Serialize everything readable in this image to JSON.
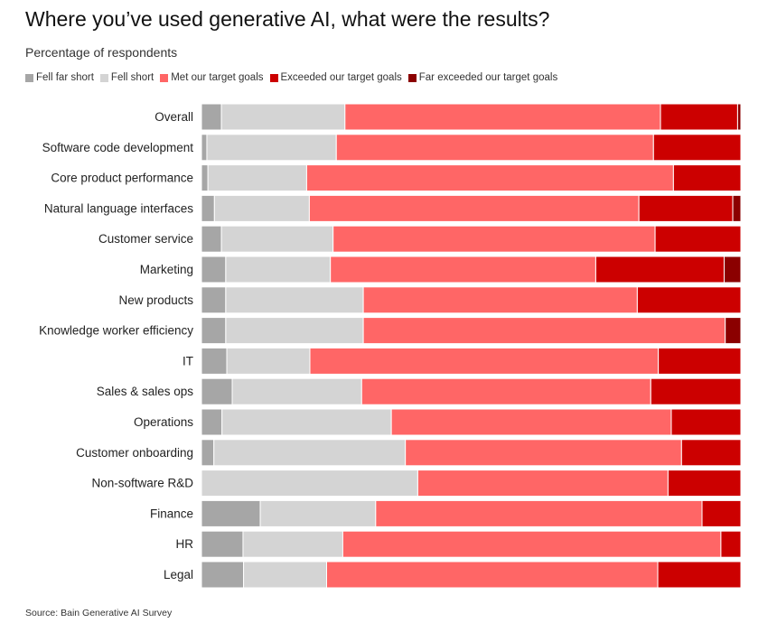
{
  "title": "Where you’ve used generative AI, what were the results?",
  "subtitle": "Percentage of respondents",
  "source": "Source: Bain Generative AI Survey",
  "chart_data": {
    "type": "bar",
    "orientation": "horizontal",
    "stacked": true,
    "percent": true,
    "xlim": [
      0,
      100
    ],
    "grid": false,
    "legend_position": "top-left",
    "categories": [
      "Overall",
      "Software code development",
      "Core product performance",
      "Natural language interfaces",
      "Customer service",
      "Marketing",
      "New products",
      "Knowledge worker efficiency",
      "IT",
      "Sales & sales ops",
      "Operations",
      "Customer onboarding",
      "Non-software R&D",
      "Finance",
      "HR",
      "Legal"
    ],
    "series": [
      {
        "name": "Fell far short",
        "color": "#a6a6a6",
        "values": [
          3.7,
          1.0,
          1.2,
          2.4,
          3.7,
          4.5,
          4.5,
          4.5,
          4.7,
          5.7,
          3.8,
          2.3,
          0.0,
          10.9,
          7.7,
          7.8
        ]
      },
      {
        "name": "Fell short",
        "color": "#d4d4d4",
        "values": [
          22.9,
          24.0,
          18.3,
          17.6,
          20.7,
          19.4,
          25.5,
          25.5,
          15.4,
          24.0,
          31.4,
          35.5,
          40.1,
          21.4,
          18.5,
          15.4
        ]
      },
      {
        "name": "Met our target goals",
        "color": "#ff6666",
        "values": [
          58.5,
          58.8,
          68.0,
          61.1,
          59.7,
          49.2,
          50.8,
          67.1,
          64.6,
          53.6,
          51.9,
          51.2,
          46.4,
          60.5,
          70.1,
          61.4
        ]
      },
      {
        "name": "Exceeded our target goals",
        "color": "#cc0000",
        "values": [
          14.3,
          16.2,
          12.5,
          17.4,
          15.9,
          23.8,
          19.2,
          0.0,
          15.3,
          16.7,
          12.9,
          11.0,
          13.5,
          7.2,
          3.7,
          15.4
        ]
      },
      {
        "name": "Far exceeded our target goals",
        "color": "#8b0000",
        "values": [
          0.6,
          0.0,
          0.0,
          1.5,
          0.0,
          3.1,
          0.0,
          2.9,
          0.0,
          0.0,
          0.0,
          0.0,
          0.0,
          0.0,
          0.0,
          0.0
        ]
      }
    ]
  }
}
